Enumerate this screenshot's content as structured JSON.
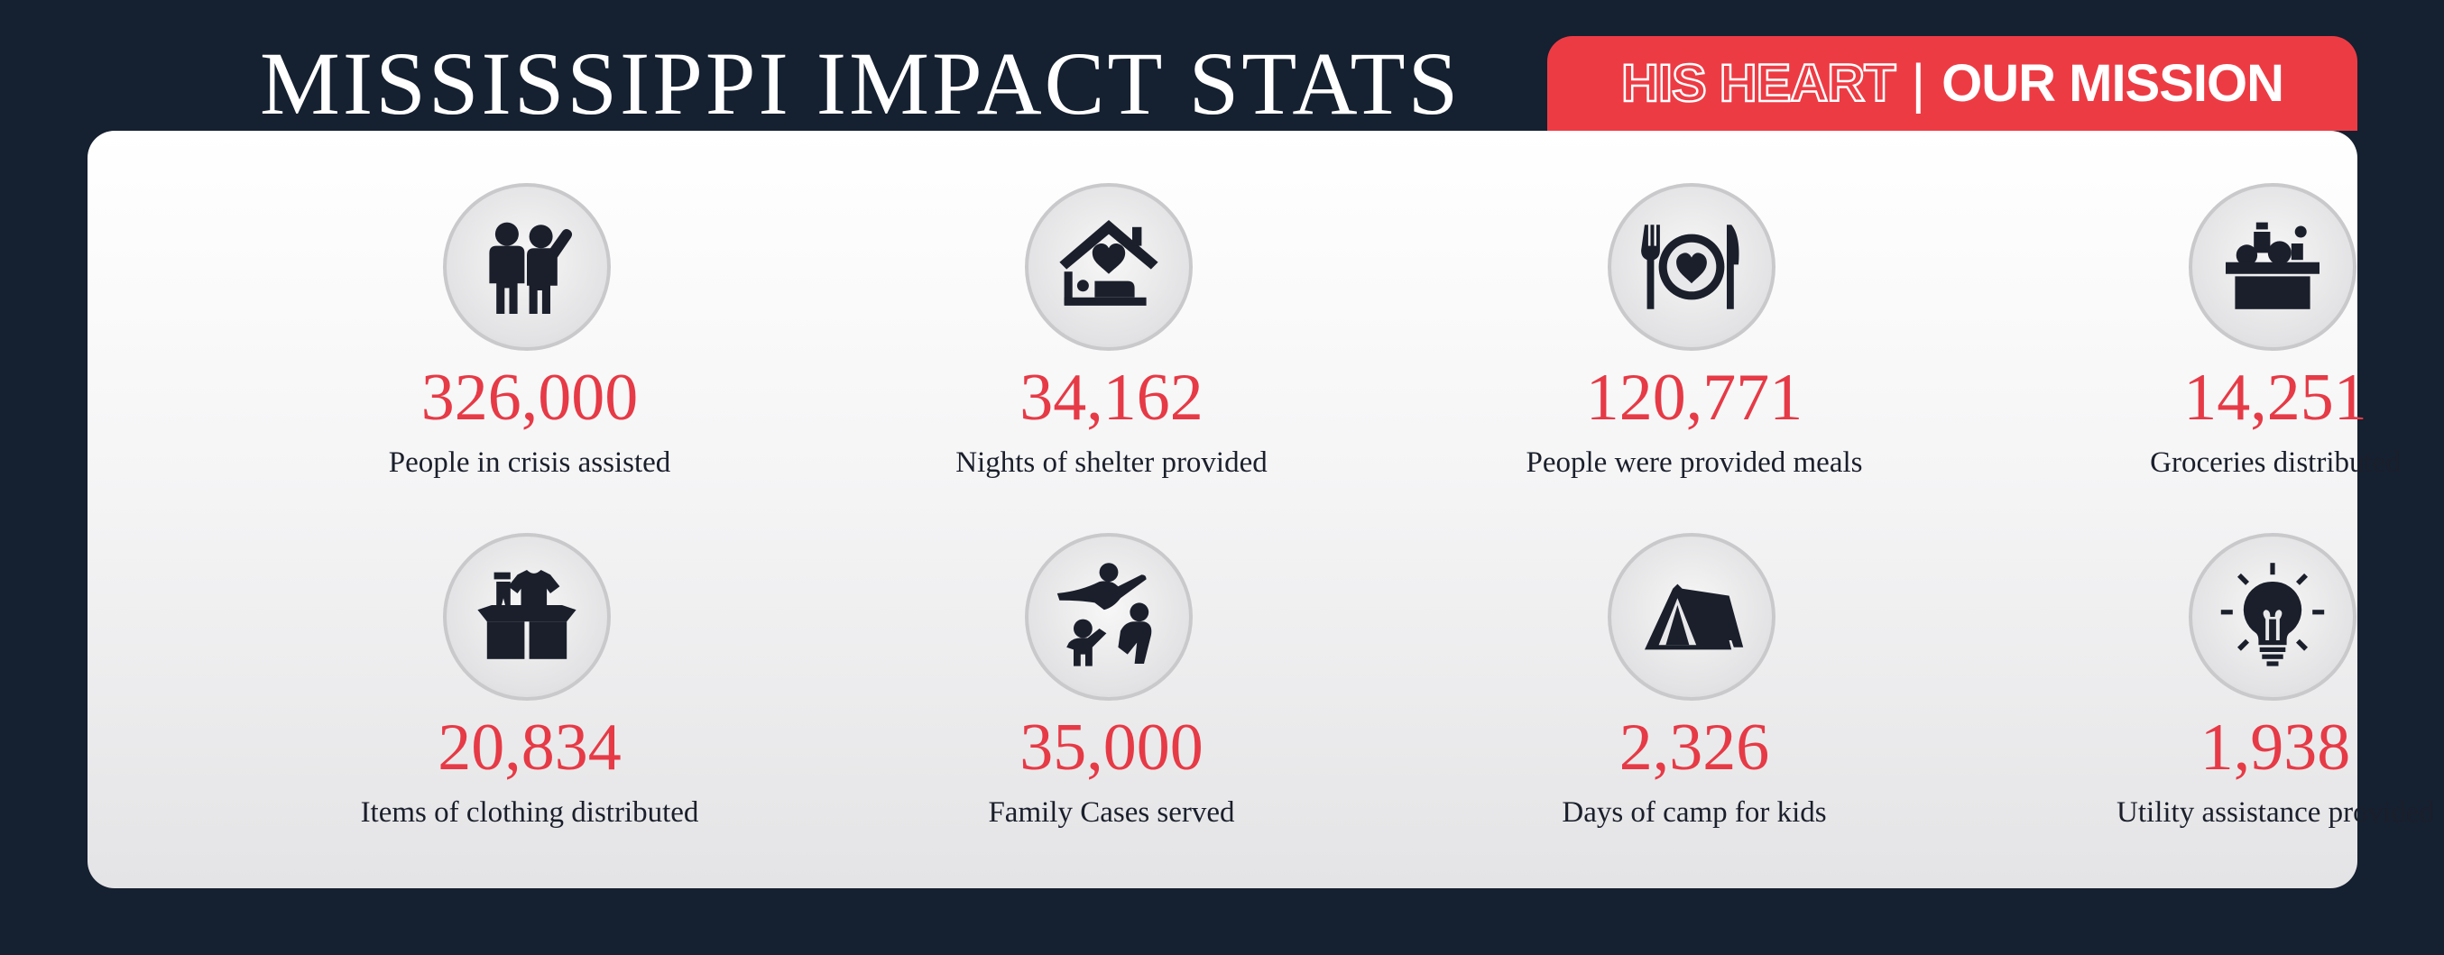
{
  "header": {
    "title": "MISSISSIPPI IMPACT STATS",
    "badge_left": "HIS HEART",
    "badge_sep": "|",
    "badge_right": "OUR MISSION"
  },
  "colors": {
    "background": "#152030",
    "accent": "#ed3b44",
    "stat_value": "#e63a46",
    "icon": "#1a1f2b"
  },
  "stats": [
    {
      "value": "326,000",
      "label": "People in crisis assisted",
      "icon": "people-icon"
    },
    {
      "value": "34,162",
      "label": "Nights of shelter provided",
      "icon": "house-heart-icon"
    },
    {
      "value": "120,771",
      "label": "People were provided meals",
      "icon": "plate-heart-icon"
    },
    {
      "value": "14,251",
      "label": "Groceries distributed",
      "icon": "grocery-box-icon"
    },
    {
      "value": "20,834",
      "label": "Items of clothing distributed",
      "icon": "clothing-box-icon"
    },
    {
      "value": "35,000",
      "label": "Family Cases served",
      "icon": "family-icon"
    },
    {
      "value": "2,326",
      "label": "Days of camp for kids",
      "icon": "tent-icon"
    },
    {
      "value": "1,938",
      "label": "Utility assistance provided",
      "icon": "lightbulb-icon"
    }
  ]
}
